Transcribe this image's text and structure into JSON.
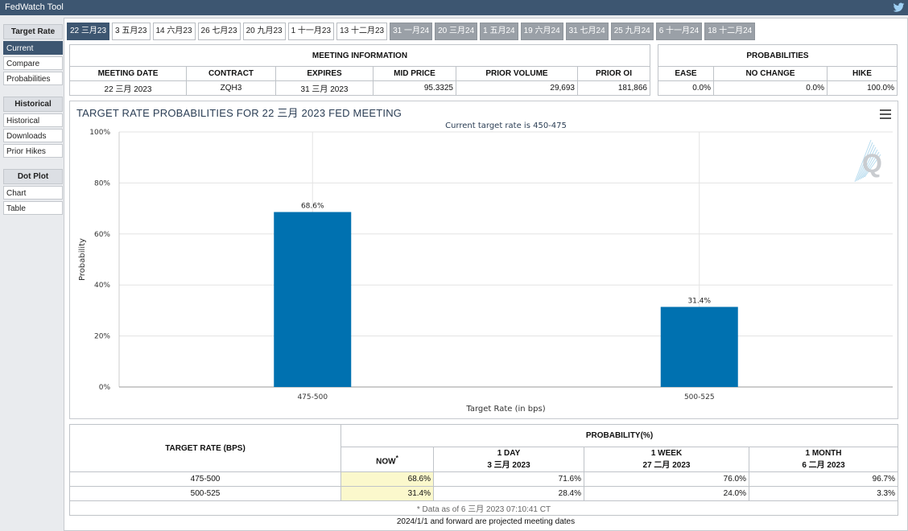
{
  "app": {
    "title": "FedWatch Tool"
  },
  "sidebar": {
    "groups": [
      {
        "heading": "Target Rate",
        "items": [
          "Current",
          "Compare",
          "Probabilities"
        ]
      },
      {
        "heading": "Historical",
        "items": [
          "Historical",
          "Downloads",
          "Prior Hikes"
        ]
      },
      {
        "heading": "Dot Plot",
        "items": [
          "Chart",
          "Table"
        ]
      }
    ]
  },
  "tabs": [
    {
      "label": "22 三月23",
      "state": "active"
    },
    {
      "label": "3 五月23",
      "state": "normal"
    },
    {
      "label": "14 六月23",
      "state": "normal"
    },
    {
      "label": "26 七月23",
      "state": "normal"
    },
    {
      "label": "20 九月23",
      "state": "normal"
    },
    {
      "label": "1 十一月23",
      "state": "normal"
    },
    {
      "label": "13 十二月23",
      "state": "normal"
    },
    {
      "label": "31 一月24",
      "state": "future"
    },
    {
      "label": "20 三月24",
      "state": "future"
    },
    {
      "label": "1 五月24",
      "state": "future"
    },
    {
      "label": "19 六月24",
      "state": "future"
    },
    {
      "label": "31 七月24",
      "state": "future"
    },
    {
      "label": "25 九月24",
      "state": "future"
    },
    {
      "label": "6 十一月24",
      "state": "future"
    },
    {
      "label": "18 十二月24",
      "state": "future"
    }
  ],
  "meeting_info": {
    "heading": "MEETING INFORMATION",
    "columns": [
      "MEETING DATE",
      "CONTRACT",
      "EXPIRES",
      "MID PRICE",
      "PRIOR VOLUME",
      "PRIOR OI"
    ],
    "row": [
      "22 三月 2023",
      "ZQH3",
      "31 三月 2023",
      "95.3325",
      "29,693",
      "181,866"
    ]
  },
  "probabilities": {
    "heading": "PROBABILITIES",
    "columns": [
      "EASE",
      "NO CHANGE",
      "HIKE"
    ],
    "row": [
      "0.0%",
      "0.0%",
      "100.0%"
    ]
  },
  "chart_data": {
    "type": "bar",
    "title": "TARGET RATE PROBABILITIES FOR 22 三月 2023 FED MEETING",
    "subtitle": "Current target rate is 450-475",
    "xlabel": "Target Rate (in bps)",
    "ylabel": "Probability",
    "categories": [
      "475-500",
      "500-525"
    ],
    "values": [
      68.6,
      31.4
    ],
    "data_labels": [
      "68.6%",
      "31.4%"
    ],
    "ylim": [
      0,
      100
    ],
    "yticks": [
      "0%",
      "20%",
      "40%",
      "60%",
      "80%",
      "100%"
    ],
    "bar_color": "#0071b0",
    "grid": true
  },
  "prob_table": {
    "rate_header": "TARGET RATE (BPS)",
    "prob_header": "PROBABILITY(%)",
    "columns": [
      {
        "line1": "NOW",
        "line2": ""
      },
      {
        "line1": "1 DAY",
        "line2": "3 三月 2023"
      },
      {
        "line1": "1 WEEK",
        "line2": "27 二月 2023"
      },
      {
        "line1": "1 MONTH",
        "line2": "6 二月 2023"
      }
    ],
    "now_marker": "*",
    "rows": [
      {
        "rate": "475-500",
        "values": [
          "68.6%",
          "71.6%",
          "76.0%",
          "96.7%"
        ]
      },
      {
        "rate": "500-525",
        "values": [
          "31.4%",
          "28.4%",
          "24.0%",
          "3.3%"
        ]
      }
    ],
    "footnote": "* Data as of 6 三月 2023 07:10:41 CT"
  },
  "bottom_note": "2024/1/1 and forward are projected meeting dates"
}
